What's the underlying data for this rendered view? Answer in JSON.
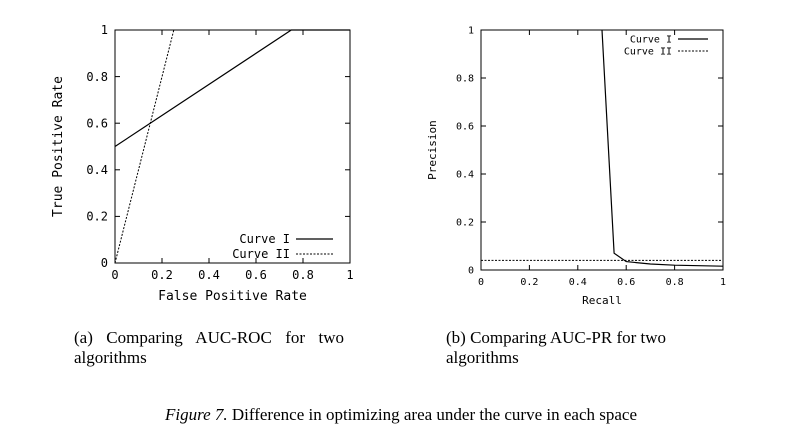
{
  "chart_data": [
    {
      "type": "line",
      "caption": "(a) Comparing AUC-ROC for two algorithms",
      "xlabel": "False Positive Rate",
      "ylabel": "True Positive Rate",
      "xlim": [
        0,
        1
      ],
      "ylim": [
        0,
        1
      ],
      "x_ticks": [
        "0",
        "0.2",
        "0.4",
        "0.6",
        "0.8",
        "1"
      ],
      "y_ticks": [
        "0",
        "0.2",
        "0.4",
        "0.6",
        "0.8",
        "1"
      ],
      "legend_position": "bottom-right",
      "series": [
        {
          "name": "Curve I",
          "style": "solid",
          "x": [
            0,
            0.75,
            1
          ],
          "y": [
            0.5,
            1,
            1
          ]
        },
        {
          "name": "Curve II",
          "style": "dotted",
          "x": [
            0,
            0.25,
            1
          ],
          "y": [
            0,
            1,
            1
          ]
        }
      ]
    },
    {
      "type": "line",
      "caption": "(b) Comparing AUC-PR for two algorithms",
      "xlabel": "Recall",
      "ylabel": "Precision",
      "xlim": [
        0,
        1
      ],
      "ylim": [
        0,
        1
      ],
      "x_ticks": [
        "0",
        "0.2",
        "0.4",
        "0.6",
        "0.8",
        "1"
      ],
      "y_ticks": [
        "0",
        "0.2",
        "0.4",
        "0.6",
        "0.8",
        "1"
      ],
      "legend_position": "top-right",
      "series": [
        {
          "name": "Curve I",
          "style": "solid",
          "x": [
            0.5,
            0.55,
            0.6,
            0.7,
            0.8,
            1
          ],
          "y": [
            1,
            0.07,
            0.035,
            0.025,
            0.02,
            0.016
          ]
        },
        {
          "name": "Curve II",
          "style": "dotted",
          "x": [
            0,
            1
          ],
          "y": [
            0.04,
            0.04
          ]
        }
      ]
    }
  ],
  "figure_caption": {
    "label": "Figure 7.",
    "text": " Difference in optimizing area under the curve in each space"
  }
}
